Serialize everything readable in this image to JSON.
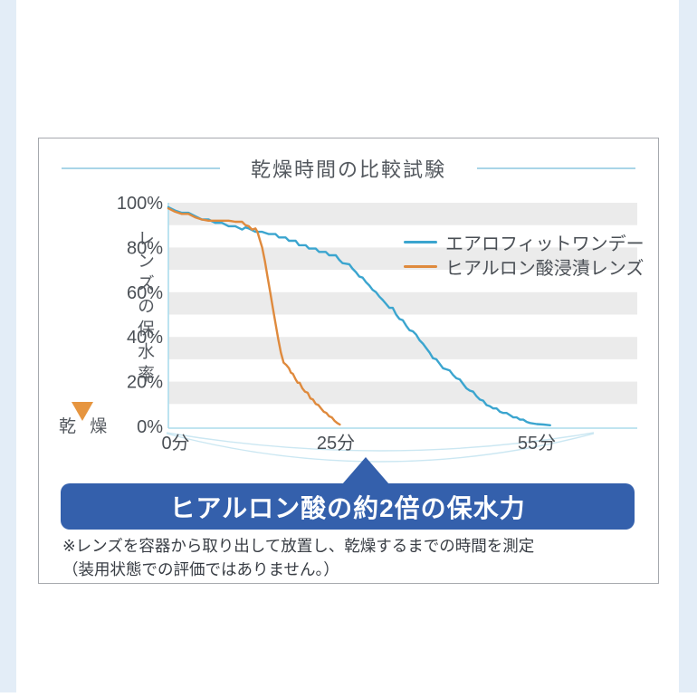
{
  "page": {
    "title": "乾燥時間の比較試験",
    "y_axis_arrow_label": "レンズの保水率",
    "y_axis_end_label": "乾 燥",
    "banner_text": "ヒアルロン酸の約2倍の保水力",
    "footnote_line1": "※レンズを容器から取り出して放置し、乾燥するまでの時間を測定",
    "footnote_line2": "（装用状態での評価ではありません。）"
  },
  "colors": {
    "series_blue": "#3BA5CF",
    "series_orange": "#DF8A3D",
    "banner_blue": "#3460AC",
    "axis_light_blue": "#ABDCEC",
    "arc_light_blue": "#CBE7F2",
    "stripe_gray": "#EBEBEB",
    "text_gray": "#4A4F55",
    "side_strip_blue": "#E3EDF7"
  },
  "chart_data": {
    "type": "line",
    "title": "乾燥時間の比較試験",
    "xlabel": "",
    "ylabel": "レンズの保水率",
    "xlim": [
      0,
      70
    ],
    "ylim": [
      0,
      100
    ],
    "grid": "horizontal gray stripes covering 100-90, 80-70, 60-50, 40-30, 20-10 percent bands",
    "legend_position": "upper right, inside plot",
    "yticks": [
      {
        "label": "100%",
        "value": 100
      },
      {
        "label": "80%",
        "value": 80
      },
      {
        "label": "60%",
        "value": 60
      },
      {
        "label": "40%",
        "value": 40
      },
      {
        "label": "20%",
        "value": 20
      },
      {
        "label": "0%",
        "value": 0
      }
    ],
    "xticks": [
      {
        "label": "0分",
        "value": 0
      },
      {
        "label": "25分",
        "value": 25
      },
      {
        "label": "55分",
        "value": 55
      }
    ],
    "series": [
      {
        "name": "エアロフィットワンデー",
        "color": "#3BA5CF",
        "points": [
          [
            0,
            98
          ],
          [
            1,
            96.5
          ],
          [
            2,
            95.5
          ],
          [
            3,
            95.5
          ],
          [
            4,
            94
          ],
          [
            5,
            92.5
          ],
          [
            6,
            92.5
          ],
          [
            7,
            91
          ],
          [
            8,
            91
          ],
          [
            9,
            89.5
          ],
          [
            10,
            89.5
          ],
          [
            11,
            88
          ],
          [
            11.5,
            89
          ],
          [
            12,
            88.5
          ],
          [
            13,
            87
          ],
          [
            14,
            87
          ],
          [
            15,
            86
          ],
          [
            16,
            86
          ],
          [
            16.5,
            84.5
          ],
          [
            17.5,
            84.5
          ],
          [
            18,
            83
          ],
          [
            19,
            83
          ],
          [
            19.5,
            81
          ],
          [
            20.5,
            81
          ],
          [
            21,
            79.5
          ],
          [
            22,
            79.5
          ],
          [
            22.5,
            78
          ],
          [
            23.5,
            78
          ],
          [
            24,
            76.5
          ],
          [
            25,
            76.5
          ],
          [
            25.5,
            74.5
          ],
          [
            26,
            73
          ],
          [
            27,
            72.5
          ],
          [
            27.5,
            70.5
          ],
          [
            28,
            69
          ],
          [
            28.5,
            67
          ],
          [
            29,
            66.5
          ],
          [
            29.5,
            64.5
          ],
          [
            30,
            63
          ],
          [
            30.5,
            61
          ],
          [
            31,
            60
          ],
          [
            31.5,
            58
          ],
          [
            32,
            56.5
          ],
          [
            33,
            53
          ],
          [
            33.5,
            53
          ],
          [
            34,
            50
          ],
          [
            34.5,
            48
          ],
          [
            35,
            47.5
          ],
          [
            35.5,
            45
          ],
          [
            36,
            43
          ],
          [
            36.5,
            42.5
          ],
          [
            37,
            41
          ],
          [
            37.5,
            38.5
          ],
          [
            38,
            37
          ],
          [
            38.5,
            35
          ],
          [
            39,
            33
          ],
          [
            39.5,
            30.5
          ],
          [
            40,
            30
          ],
          [
            40.5,
            28
          ],
          [
            41,
            26
          ],
          [
            41.5,
            25.5
          ],
          [
            42,
            25
          ],
          [
            42.5,
            23
          ],
          [
            43,
            21.5
          ],
          [
            43.5,
            21
          ],
          [
            44,
            19
          ],
          [
            44.5,
            17
          ],
          [
            45,
            16
          ],
          [
            45.5,
            15.5
          ],
          [
            46,
            13.5
          ],
          [
            46.5,
            12
          ],
          [
            47,
            11.5
          ],
          [
            47.5,
            9.5
          ],
          [
            48,
            9
          ],
          [
            48.5,
            8
          ],
          [
            49,
            8
          ],
          [
            49.5,
            6.5
          ],
          [
            50,
            6
          ],
          [
            50.5,
            6
          ],
          [
            51,
            5
          ],
          [
            51.5,
            4
          ],
          [
            52,
            4
          ],
          [
            52.5,
            3
          ],
          [
            53,
            3
          ],
          [
            53.5,
            2
          ],
          [
            54,
            1.5
          ],
          [
            55,
            1
          ],
          [
            56,
            0.8
          ],
          [
            57,
            0.5
          ]
        ]
      },
      {
        "name": "ヒアルロン酸浸漬レンズ",
        "color": "#DF8A3D",
        "points": [
          [
            0,
            97.5
          ],
          [
            1,
            96
          ],
          [
            2,
            95
          ],
          [
            3,
            95
          ],
          [
            4,
            93.5
          ],
          [
            5,
            92.5
          ],
          [
            6,
            92
          ],
          [
            7,
            92
          ],
          [
            8,
            92
          ],
          [
            9,
            92
          ],
          [
            10,
            91.5
          ],
          [
            11,
            91.5
          ],
          [
            11.5,
            90
          ],
          [
            12,
            89.5
          ],
          [
            12.5,
            88
          ],
          [
            13,
            88.5
          ],
          [
            13.3,
            87
          ],
          [
            13.6,
            84
          ],
          [
            14,
            80
          ],
          [
            14.4,
            74
          ],
          [
            14.8,
            67
          ],
          [
            15.2,
            60
          ],
          [
            15.6,
            53
          ],
          [
            16,
            46
          ],
          [
            16.4,
            39
          ],
          [
            16.8,
            33
          ],
          [
            17.2,
            28.5
          ],
          [
            17.6,
            27.5
          ],
          [
            18,
            26
          ],
          [
            18.3,
            24
          ],
          [
            18.6,
            23.5
          ],
          [
            19,
            21
          ],
          [
            19.3,
            19.5
          ],
          [
            19.6,
            19.5
          ],
          [
            20,
            17
          ],
          [
            20.4,
            15.5
          ],
          [
            20.8,
            15
          ],
          [
            21.2,
            12.5
          ],
          [
            21.6,
            12
          ],
          [
            22,
            10
          ],
          [
            22.4,
            9.5
          ],
          [
            22.8,
            8
          ],
          [
            23.2,
            6.5
          ],
          [
            23.6,
            6
          ],
          [
            24,
            4.5
          ],
          [
            24.4,
            4
          ],
          [
            24.8,
            2.5
          ],
          [
            25.2,
            1.5
          ],
          [
            25.6,
            0.8
          ]
        ]
      }
    ],
    "annotation": {
      "text": "ヒアルロン酸の約2倍の保水力",
      "points_to": "25分"
    }
  }
}
